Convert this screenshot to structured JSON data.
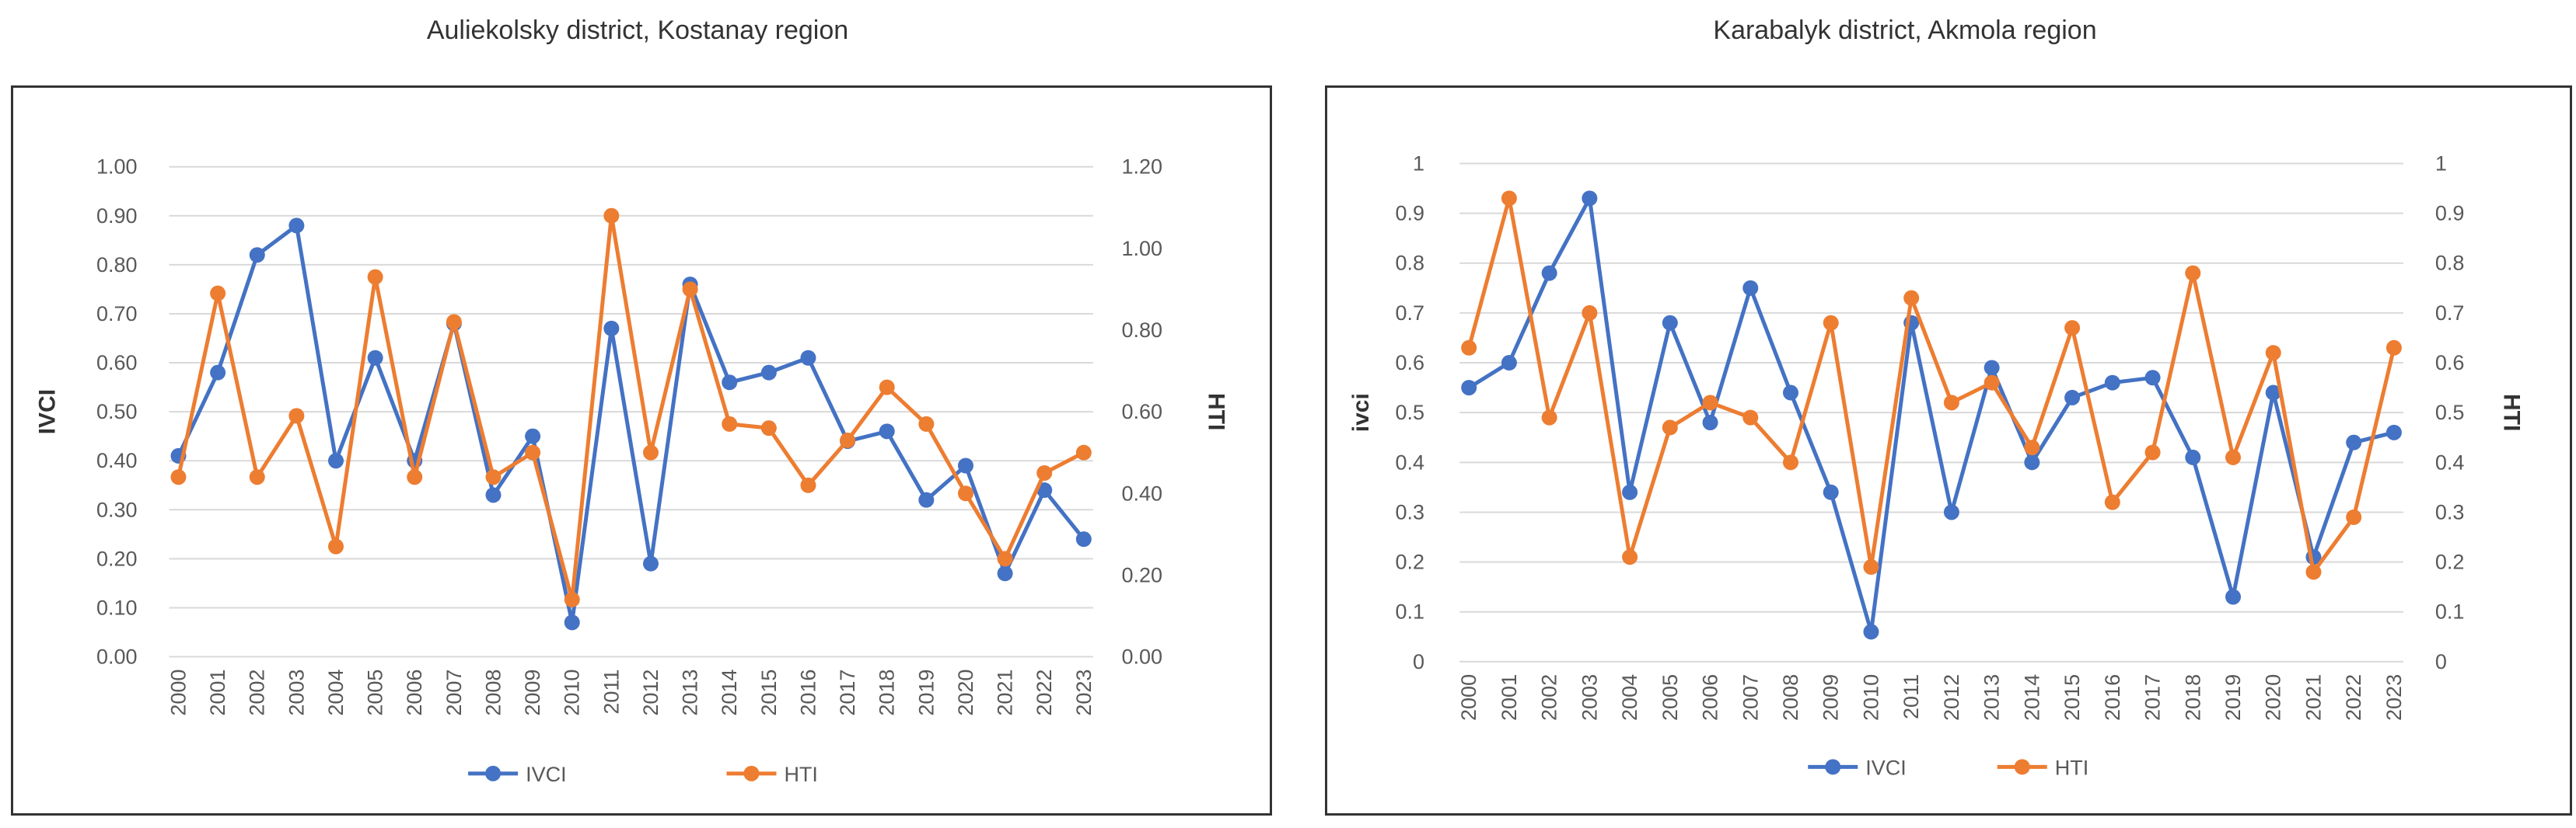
{
  "chart_data": [
    {
      "type": "line",
      "title": "Auliekolsky district, Kostanay region",
      "x": [
        "2000",
        "2001",
        "2002",
        "2003",
        "2004",
        "2005",
        "2006",
        "2007",
        "2008",
        "2009",
        "2010",
        "2011",
        "2012",
        "2013",
        "2014",
        "2015",
        "2016",
        "2017",
        "2018",
        "2019",
        "2020",
        "2021",
        "2022",
        "2023"
      ],
      "ylabel_left": "IVCI",
      "ylabel_right": "HTI",
      "ylim_left": [
        0,
        1
      ],
      "ylim_right": [
        0,
        1.2
      ],
      "yticks_left": [
        "0.00",
        "0.10",
        "0.20",
        "0.30",
        "0.40",
        "0.50",
        "0.60",
        "0.70",
        "0.80",
        "0.90",
        "1.00"
      ],
      "yticks_right": [
        "0.00",
        "0.20",
        "0.40",
        "0.60",
        "0.80",
        "1.00",
        "1.20"
      ],
      "grid": true,
      "legend_position": "bottom",
      "series": [
        {
          "name": "IVCI",
          "axis": "left",
          "color": "#4472C4",
          "values": [
            0.41,
            0.58,
            0.82,
            0.88,
            0.4,
            0.61,
            0.4,
            0.68,
            0.33,
            0.45,
            0.07,
            0.67,
            0.19,
            0.76,
            0.56,
            0.58,
            0.61,
            0.44,
            0.46,
            0.32,
            0.39,
            0.17,
            0.34,
            0.24
          ]
        },
        {
          "name": "HTI",
          "axis": "right",
          "color": "#ED7D31",
          "values": [
            0.44,
            0.89,
            0.44,
            0.59,
            0.27,
            0.93,
            0.44,
            0.82,
            0.44,
            0.5,
            0.14,
            1.08,
            0.5,
            0.9,
            0.57,
            0.56,
            0.42,
            0.53,
            0.66,
            0.57,
            0.4,
            0.24,
            0.45,
            0.5
          ]
        }
      ]
    },
    {
      "type": "line",
      "title": "Karabalyk district, Akmola region",
      "x": [
        "2000",
        "2001",
        "2002",
        "2003",
        "2004",
        "2005",
        "2006",
        "2007",
        "2008",
        "2009",
        "2010",
        "2011",
        "2012",
        "2013",
        "2014",
        "2015",
        "2016",
        "2017",
        "2018",
        "2019",
        "2020",
        "2021",
        "2022",
        "2023"
      ],
      "ylabel_left": "ivci",
      "ylabel_right": "HTI",
      "ylim_left": [
        0,
        1
      ],
      "ylim_right": [
        0,
        1
      ],
      "yticks_left": [
        "0",
        "0.1",
        "0.2",
        "0.3",
        "0.4",
        "0.5",
        "0.6",
        "0.7",
        "0.8",
        "0.9",
        "1"
      ],
      "yticks_right": [
        "0",
        "0.1",
        "0.2",
        "0.3",
        "0.4",
        "0.5",
        "0.6",
        "0.7",
        "0.8",
        "0.9",
        "1"
      ],
      "grid": true,
      "legend_position": "bottom",
      "series": [
        {
          "name": "IVCI",
          "axis": "left",
          "color": "#4472C4",
          "values": [
            0.55,
            0.6,
            0.78,
            0.93,
            0.34,
            0.68,
            0.48,
            0.75,
            0.54,
            0.34,
            0.06,
            0.68,
            0.3,
            0.59,
            0.4,
            0.53,
            0.56,
            0.57,
            0.41,
            0.13,
            0.54,
            0.21,
            0.44,
            0.46
          ]
        },
        {
          "name": "HTI",
          "axis": "right",
          "color": "#ED7D31",
          "values": [
            0.63,
            0.93,
            0.49,
            0.7,
            0.21,
            0.47,
            0.52,
            0.49,
            0.4,
            0.68,
            0.19,
            0.73,
            0.52,
            0.56,
            0.43,
            0.67,
            0.32,
            0.42,
            0.78,
            0.41,
            0.62,
            0.18,
            0.29,
            0.63
          ]
        }
      ]
    }
  ]
}
